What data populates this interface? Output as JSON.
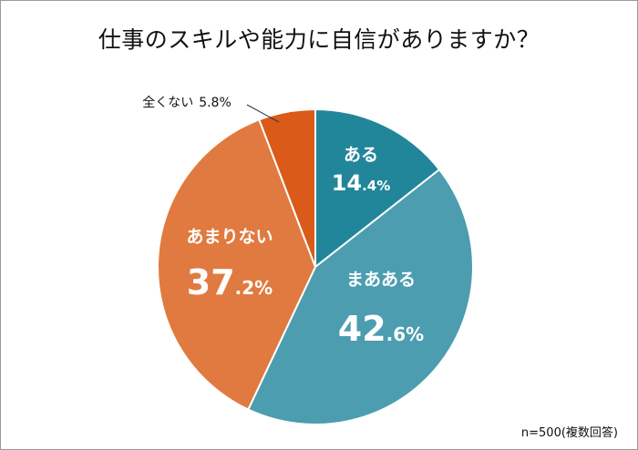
{
  "chart_data": {
    "type": "pie",
    "title": "仕事のスキルや能力に自信がありますか？",
    "note": "n=500(複数回答)",
    "slices": [
      {
        "label": "ある",
        "int": "14",
        "dec": ".4%",
        "value": 14.4,
        "color": "#22869A"
      },
      {
        "label": "まあある",
        "int": "42",
        "dec": ".6%",
        "value": 42.6,
        "color": "#4C9DB0"
      },
      {
        "label": "あまりない",
        "int": "37",
        "dec": ".2%",
        "value": 37.2,
        "color": "#E07A40"
      },
      {
        "label": "全くない",
        "int": "",
        "dec": "5.8%",
        "value": 5.8,
        "color": "#DA5A1A"
      }
    ]
  }
}
